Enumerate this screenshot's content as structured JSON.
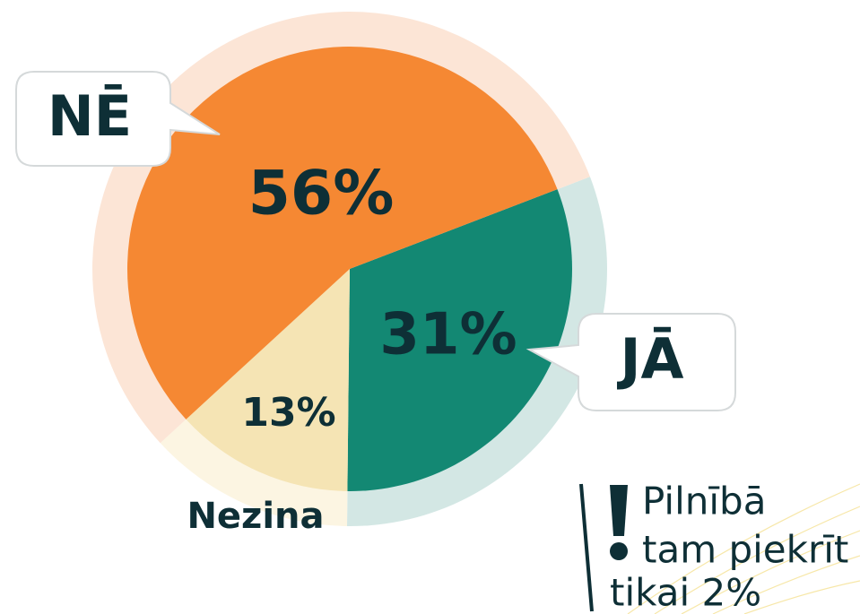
{
  "chart_data": {
    "type": "pie",
    "categories": [
      "JĀ",
      "Nezina",
      "NĒ"
    ],
    "values": [
      31,
      13,
      56
    ],
    "value_labels": [
      "31%",
      "13%",
      "56%"
    ],
    "colors": [
      "#138873",
      "#f5e4b4",
      "#f58833"
    ],
    "ring_colors": [
      "#d3e7e4",
      "#fcf5e2",
      "#fce5d6"
    ],
    "annotation": [
      "Pilnībā",
      "tam piekrīt",
      "tikai 2%"
    ]
  }
}
